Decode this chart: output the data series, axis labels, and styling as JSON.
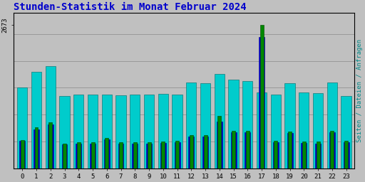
{
  "title": "Stunden-Statistik im Monat Februar 2024",
  "title_color": "#0000cc",
  "ylabel_right": "Seiten / Dateien / Anfragen",
  "ylabel_right_color": "#008888",
  "background_color": "#c0c0c0",
  "plot_bg_color": "#c0c0c0",
  "hours": [
    0,
    1,
    2,
    3,
    4,
    5,
    6,
    7,
    8,
    9,
    10,
    11,
    12,
    13,
    14,
    15,
    16,
    17,
    18,
    19,
    20,
    21,
    22,
    23
  ],
  "seiten": [
    530,
    760,
    860,
    460,
    480,
    490,
    570,
    490,
    490,
    490,
    500,
    510,
    620,
    620,
    980,
    700,
    700,
    2673,
    510,
    690,
    500,
    500,
    700,
    510
  ],
  "dateien": [
    510,
    730,
    820,
    440,
    455,
    465,
    540,
    460,
    465,
    465,
    475,
    490,
    590,
    595,
    870,
    670,
    670,
    2450,
    490,
    660,
    475,
    465,
    675,
    490
  ],
  "anfragen": [
    1500,
    1800,
    1900,
    1350,
    1380,
    1380,
    1380,
    1360,
    1370,
    1380,
    1390,
    1380,
    1600,
    1580,
    1760,
    1650,
    1620,
    1420,
    1370,
    1580,
    1420,
    1400,
    1600,
    1350
  ],
  "seiten_color": "#008800",
  "dateien_color": "#0000cc",
  "anfragen_color": "#00cccc",
  "ylim_max": 2900,
  "grid_lines": [
    500,
    1000,
    1500,
    2000,
    2500
  ]
}
